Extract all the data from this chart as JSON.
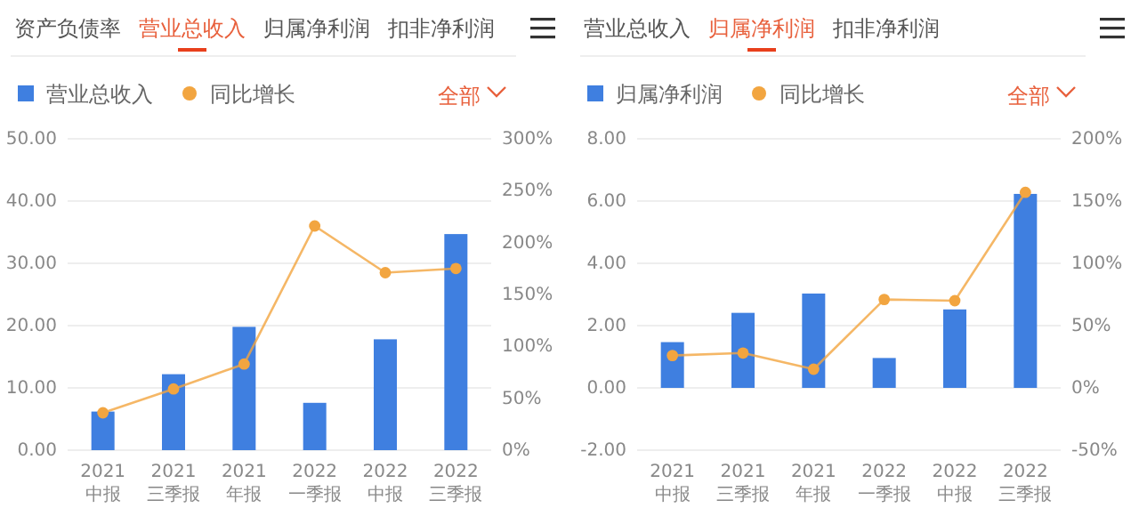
{
  "chart_data": [
    {
      "type": "bar",
      "title": "营业总收入",
      "annotations": [
        "资产负债率",
        "归属净利润",
        "扣非净利润",
        "全部"
      ],
      "categories": [
        "2021\n中报",
        "2021\n三季报",
        "2021\n年报",
        "2022\n一季报",
        "2022\n中报",
        "2022\n三季报"
      ],
      "series": [
        {
          "name": "营业总收入",
          "color": "#3f7fe0",
          "values": [
            6.2,
            12.2,
            19.8,
            7.6,
            17.8,
            34.7
          ]
        },
        {
          "name": "同比增长",
          "type": "line",
          "axis": "y2",
          "marker": "circle",
          "color": "#f2a540",
          "values": [
            36,
            59,
            83,
            216,
            171,
            175
          ]
        }
      ],
      "ylim": [
        0,
        50
      ],
      "yticks": [
        {
          "value": 0,
          "label": "0.00"
        },
        {
          "value": 10,
          "label": "10.00"
        },
        {
          "value": 20,
          "label": "20.00"
        },
        {
          "value": 30,
          "label": "30.00"
        },
        {
          "value": 40,
          "label": "40.00"
        },
        {
          "value": 50,
          "label": "50.00"
        }
      ],
      "y2lim": [
        0,
        300
      ],
      "y2ticks": [
        {
          "value": 0,
          "label": "0%"
        },
        {
          "value": 50,
          "label": "50%"
        },
        {
          "value": 100,
          "label": "100%"
        },
        {
          "value": 150,
          "label": "150%"
        },
        {
          "value": 200,
          "label": "200%"
        },
        {
          "value": 250,
          "label": "250%"
        },
        {
          "value": 300,
          "label": "300%"
        }
      ],
      "grid": "y",
      "legend": "top left"
    },
    {
      "type": "bar",
      "title": "归属净利润",
      "annotations": [
        "营业总收入",
        "扣非净利润",
        "全部"
      ],
      "categories": [
        "2021\n中报",
        "2021\n三季报",
        "2021\n年报",
        "2022\n一季报",
        "2022\n中报",
        "2022\n三季报"
      ],
      "series": [
        {
          "name": "归属净利润",
          "color": "#3f7fe0",
          "values": [
            1.47,
            2.41,
            3.03,
            0.96,
            2.52,
            6.23
          ]
        },
        {
          "name": "同比增长",
          "type": "line",
          "axis": "y2",
          "marker": "circle",
          "color": "#f2a540",
          "values": [
            26,
            28,
            15,
            71,
            70,
            157
          ]
        }
      ],
      "ylim": [
        -2,
        8
      ],
      "yticks": [
        {
          "value": -2,
          "label": "-2.00"
        },
        {
          "value": 0,
          "label": "0.00"
        },
        {
          "value": 2,
          "label": "2.00"
        },
        {
          "value": 4,
          "label": "4.00"
        },
        {
          "value": 6,
          "label": "6.00"
        },
        {
          "value": 8,
          "label": "8.00"
        }
      ],
      "y2lim": [
        -50,
        200
      ],
      "y2ticks": [
        {
          "value": -50,
          "label": "-50%"
        },
        {
          "value": 0,
          "label": "0%"
        },
        {
          "value": 50,
          "label": "50%"
        },
        {
          "value": 100,
          "label": "100%"
        },
        {
          "value": 150,
          "label": "150%"
        },
        {
          "value": 200,
          "label": "200%"
        }
      ],
      "grid": "y",
      "legend": "top left"
    }
  ]
}
